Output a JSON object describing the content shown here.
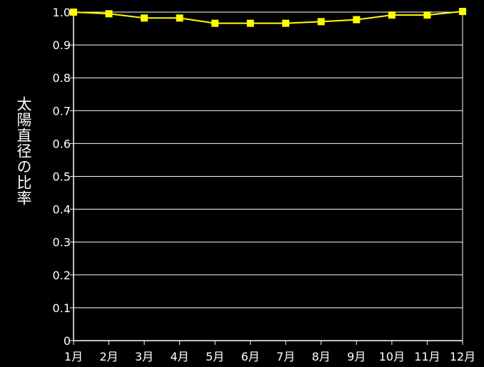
{
  "chart_data": {
    "type": "line",
    "categories": [
      "1月",
      "2月",
      "3月",
      "4月",
      "5月",
      "6月",
      "7月",
      "8月",
      "9月",
      "10月",
      "11月",
      "12月"
    ],
    "series": [
      {
        "values": [
          1.0,
          0.995,
          0.982,
          0.982,
          0.966,
          0.966,
          0.966,
          0.971,
          0.977,
          0.991,
          0.991,
          1.002
        ]
      }
    ],
    "ylabel": "太陽直径の比率",
    "xlabel": "",
    "title": "",
    "ylim": [
      0,
      1.0
    ],
    "yticks": [
      0,
      0.1,
      0.2,
      0.3,
      0.4,
      0.5,
      0.6,
      0.7,
      0.8,
      0.9,
      1.0
    ],
    "ytick_labels": [
      "0",
      "0.1",
      "0.2",
      "0.3",
      "0.4",
      "0.5",
      "0.6",
      "0.7",
      "0.8",
      "0.9",
      "1.0"
    ],
    "grid": true,
    "legend": "none",
    "colors": {
      "background": "#000000",
      "line": "#ffff00",
      "marker": "#ffff00",
      "grid": "#ffffff",
      "axis": "#ffffff",
      "text": "#ffffff"
    }
  }
}
